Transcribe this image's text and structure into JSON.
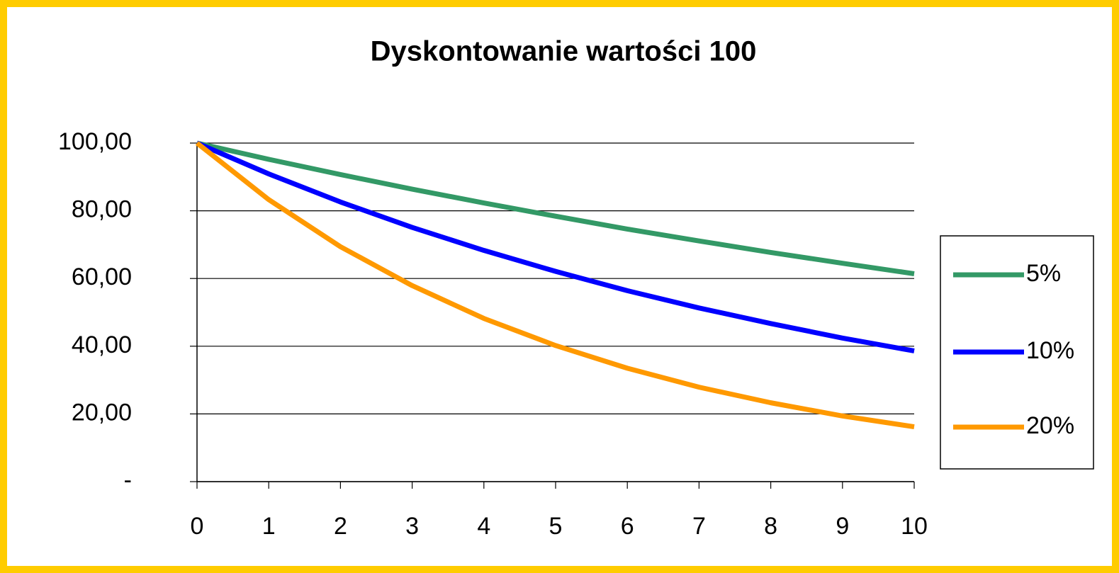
{
  "chart_data": {
    "type": "line",
    "title": "Dyskontowanie wartości 100",
    "x": [
      0,
      1,
      2,
      3,
      4,
      5,
      6,
      7,
      8,
      9,
      10
    ],
    "xlim": [
      0,
      10
    ],
    "xticks": [
      0,
      1,
      2,
      3,
      4,
      5,
      6,
      7,
      8,
      9,
      10
    ],
    "ylim": [
      0,
      100
    ],
    "yticks": [
      {
        "value": 0,
        "label": "-"
      },
      {
        "value": 20,
        "label": "20,00"
      },
      {
        "value": 40,
        "label": "40,00"
      },
      {
        "value": 60,
        "label": "60,00"
      },
      {
        "value": 80,
        "label": "80,00"
      },
      {
        "value": 100,
        "label": "100,00"
      }
    ],
    "grid": true,
    "legend": "right",
    "series": [
      {
        "name": "5%",
        "color": "#339966",
        "values": [
          100,
          95.2,
          90.7,
          86.4,
          82.3,
          78.4,
          74.6,
          71.1,
          67.7,
          64.5,
          61.4
        ]
      },
      {
        "name": "10%",
        "color": "#0000ff",
        "values": [
          100,
          90.9,
          82.6,
          75.1,
          68.3,
          62.1,
          56.4,
          51.3,
          46.7,
          42.4,
          38.6
        ]
      },
      {
        "name": "20%",
        "color": "#ff9900",
        "values": [
          100,
          83.3,
          69.4,
          57.9,
          48.2,
          40.2,
          33.5,
          27.9,
          23.3,
          19.4,
          16.2
        ]
      }
    ]
  }
}
